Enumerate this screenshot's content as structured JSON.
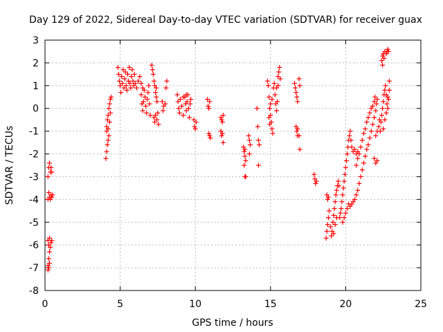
{
  "chart_data": {
    "type": "scatter",
    "title": "Day 129 of 2022, Sidereal Day-to-day VTEC variation (SDTVAR) for receiver guax",
    "xlabel": "GPS time / hours",
    "ylabel": "SDTVAR / TECUs",
    "xlim": [
      0,
      25
    ],
    "ylim": [
      -8,
      3
    ],
    "xticks": [
      "0",
      "5",
      "10",
      "15",
      "20",
      "25"
    ],
    "yticks": [
      "3",
      "2",
      "1",
      "0",
      "-1",
      "-2",
      "-3",
      "-4",
      "-5",
      "-6",
      "-7",
      "-8"
    ],
    "xtick_values": [
      0,
      5,
      10,
      15,
      20,
      25
    ],
    "ytick_values": [
      3,
      2,
      1,
      0,
      -1,
      -2,
      -3,
      -4,
      -5,
      -6,
      -7,
      -8
    ],
    "grid": true,
    "marker": "+",
    "series": [
      {
        "color": "#ff0000",
        "points": [
          [
            0.2,
            -3.0
          ],
          [
            0.25,
            -2.6
          ],
          [
            0.3,
            -2.4
          ],
          [
            0.35,
            -2.8
          ],
          [
            0.4,
            -2.6
          ],
          [
            0.45,
            -2.8
          ],
          [
            0.3,
            -3.9
          ],
          [
            0.35,
            -4.0
          ],
          [
            0.4,
            -3.8
          ],
          [
            0.45,
            -3.9
          ],
          [
            0.5,
            -3.8
          ],
          [
            0.2,
            -4.0
          ],
          [
            0.25,
            -3.7
          ],
          [
            0.2,
            -5.8
          ],
          [
            0.25,
            -6.0
          ],
          [
            0.3,
            -5.7
          ],
          [
            0.35,
            -6.1
          ],
          [
            0.4,
            -5.9
          ],
          [
            0.45,
            -5.8
          ],
          [
            0.3,
            -6.3
          ],
          [
            0.25,
            -6.6
          ],
          [
            0.2,
            -6.9
          ],
          [
            0.2,
            -7.1
          ],
          [
            0.25,
            -7.0
          ],
          [
            0.3,
            -6.8
          ],
          [
            4.05,
            -2.2
          ],
          [
            4.1,
            -1.9
          ],
          [
            4.15,
            -1.6
          ],
          [
            4.2,
            -1.4
          ],
          [
            4.25,
            -1.2
          ],
          [
            4.1,
            -0.8
          ],
          [
            4.15,
            -0.5
          ],
          [
            4.2,
            -0.3
          ],
          [
            4.25,
            0.0
          ],
          [
            4.3,
            0.2
          ],
          [
            4.35,
            0.4
          ],
          [
            4.4,
            0.5
          ],
          [
            4.2,
            -0.9
          ],
          [
            4.3,
            -0.6
          ],
          [
            4.35,
            -0.2
          ],
          [
            4.1,
            -1.0
          ],
          [
            4.85,
            1.8
          ],
          [
            4.9,
            1.5
          ],
          [
            4.95,
            1.2
          ],
          [
            5.0,
            1.0
          ],
          [
            5.05,
            0.7
          ],
          [
            5.1,
            1.4
          ],
          [
            5.15,
            1.1
          ],
          [
            5.2,
            1.7
          ],
          [
            5.25,
            0.9
          ],
          [
            5.3,
            1.3
          ],
          [
            5.35,
            1.6
          ],
          [
            5.4,
            1.0
          ],
          [
            5.45,
            0.8
          ],
          [
            5.5,
            1.5
          ],
          [
            5.55,
            1.2
          ],
          [
            5.6,
            1.8
          ],
          [
            5.65,
            1.1
          ],
          [
            5.7,
            0.9
          ],
          [
            5.75,
            1.4
          ],
          [
            5.8,
            1.7
          ],
          [
            5.85,
            1.2
          ],
          [
            5.9,
            1.0
          ],
          [
            5.95,
            1.5
          ],
          [
            6.0,
            1.1
          ],
          [
            6.1,
            0.9
          ],
          [
            6.2,
            1.2
          ],
          [
            6.3,
            1.4
          ],
          [
            6.4,
            1.1
          ],
          [
            6.5,
            0.9
          ],
          [
            6.4,
            0.6
          ],
          [
            6.45,
            0.2
          ],
          [
            6.5,
            -0.1
          ],
          [
            6.55,
            0.3
          ],
          [
            6.6,
            0.8
          ],
          [
            6.65,
            0.5
          ],
          [
            6.7,
            0.1
          ],
          [
            6.75,
            -0.2
          ],
          [
            6.8,
            0.4
          ],
          [
            6.85,
            0.7
          ],
          [
            6.9,
            1.0
          ],
          [
            6.95,
            0.2
          ],
          [
            7.0,
            -0.3
          ],
          [
            7.1,
            1.9
          ],
          [
            7.15,
            1.7
          ],
          [
            7.2,
            1.5
          ],
          [
            7.25,
            1.2
          ],
          [
            7.3,
            1.0
          ],
          [
            7.35,
            0.7
          ],
          [
            7.4,
            0.5
          ],
          [
            7.25,
            -0.4
          ],
          [
            7.3,
            -0.6
          ],
          [
            7.35,
            -0.3
          ],
          [
            7.45,
            -0.5
          ],
          [
            7.5,
            -0.2
          ],
          [
            7.55,
            -0.7
          ],
          [
            7.4,
            0.9
          ],
          [
            7.45,
            0.3
          ],
          [
            7.8,
            0.3
          ],
          [
            7.85,
            -0.1
          ],
          [
            7.9,
            0.1
          ],
          [
            8.0,
            0.2
          ],
          [
            8.05,
            0.9
          ],
          [
            8.1,
            1.2
          ],
          [
            8.8,
            0.6
          ],
          [
            8.85,
            0.3
          ],
          [
            8.9,
            0.0
          ],
          [
            8.95,
            -0.2
          ],
          [
            9.0,
            0.4
          ],
          [
            9.1,
            0.1
          ],
          [
            9.2,
            -0.3
          ],
          [
            9.3,
            0.5
          ],
          [
            9.35,
            0.2
          ],
          [
            9.4,
            -0.1
          ],
          [
            9.45,
            0.3
          ],
          [
            9.5,
            0.6
          ],
          [
            9.55,
            0.0
          ],
          [
            9.6,
            -0.4
          ],
          [
            9.65,
            0.2
          ],
          [
            9.7,
            0.4
          ],
          [
            9.2,
            0.5
          ],
          [
            9.4,
            0.6
          ],
          [
            9.9,
            -0.5
          ],
          [
            9.95,
            -0.8
          ],
          [
            10.0,
            -0.9
          ],
          [
            10.05,
            -0.6
          ],
          [
            10.8,
            0.4
          ],
          [
            10.85,
            0.1
          ],
          [
            10.9,
            0.0
          ],
          [
            10.95,
            0.3
          ],
          [
            10.9,
            -1.1
          ],
          [
            10.95,
            -1.2
          ],
          [
            11.0,
            -1.3
          ],
          [
            11.7,
            -0.4
          ],
          [
            11.75,
            -0.5
          ],
          [
            11.8,
            -0.6
          ],
          [
            11.85,
            -0.3
          ],
          [
            11.7,
            -1.0
          ],
          [
            11.75,
            -1.2
          ],
          [
            11.8,
            -1.1
          ],
          [
            11.85,
            -1.5
          ],
          [
            13.2,
            -1.7
          ],
          [
            13.25,
            -1.9
          ],
          [
            13.3,
            -2.1
          ],
          [
            13.35,
            -2.3
          ],
          [
            13.25,
            -2.5
          ],
          [
            13.3,
            -1.8
          ],
          [
            13.3,
            -3.0
          ],
          [
            13.35,
            -3.0
          ],
          [
            13.55,
            -1.2
          ],
          [
            13.6,
            -1.4
          ],
          [
            13.65,
            -1.6
          ],
          [
            13.6,
            -2.0
          ],
          [
            14.1,
            0.0
          ],
          [
            14.15,
            -0.8
          ],
          [
            14.2,
            -1.4
          ],
          [
            14.25,
            -1.6
          ],
          [
            14.2,
            -2.5
          ],
          [
            14.8,
            1.2
          ],
          [
            14.85,
            1.0
          ],
          [
            14.9,
            0.5
          ],
          [
            14.95,
            0.0
          ],
          [
            15.0,
            -0.3
          ],
          [
            15.05,
            -0.6
          ],
          [
            15.1,
            -0.9
          ],
          [
            15.15,
            -1.1
          ],
          [
            15.0,
            0.2
          ],
          [
            15.1,
            0.4
          ],
          [
            14.9,
            -0.4
          ],
          [
            14.95,
            -0.7
          ],
          [
            15.2,
            0.9
          ],
          [
            15.25,
            1.1
          ],
          [
            15.3,
            0.6
          ],
          [
            15.35,
            0.2
          ],
          [
            15.4,
            -0.1
          ],
          [
            15.45,
            0.3
          ],
          [
            15.5,
            1.4
          ],
          [
            15.55,
            1.6
          ],
          [
            15.6,
            1.8
          ],
          [
            15.65,
            1.3
          ],
          [
            15.5,
            1.0
          ],
          [
            15.4,
            0.9
          ],
          [
            16.6,
            1.1
          ],
          [
            16.65,
            0.9
          ],
          [
            16.7,
            0.7
          ],
          [
            16.75,
            0.5
          ],
          [
            16.8,
            0.3
          ],
          [
            16.9,
            1.3
          ],
          [
            16.95,
            1.0
          ],
          [
            16.7,
            -0.8
          ],
          [
            16.75,
            -1.0
          ],
          [
            16.8,
            -1.2
          ],
          [
            16.9,
            -1.2
          ],
          [
            16.95,
            -1.8
          ],
          [
            16.8,
            -0.9
          ],
          [
            17.9,
            -2.9
          ],
          [
            17.95,
            -3.1
          ],
          [
            18.0,
            -3.3
          ],
          [
            18.05,
            -3.2
          ],
          [
            18.7,
            -5.7
          ],
          [
            18.75,
            -5.4
          ],
          [
            18.8,
            -5.1
          ],
          [
            18.85,
            -4.8
          ],
          [
            18.9,
            -4.5
          ],
          [
            18.75,
            -3.8
          ],
          [
            18.8,
            -4.0
          ],
          [
            18.85,
            -3.9
          ],
          [
            19.0,
            -5.2
          ],
          [
            19.05,
            -5.6
          ],
          [
            19.1,
            -5.4
          ],
          [
            19.15,
            -5.0
          ],
          [
            19.2,
            -4.7
          ],
          [
            19.25,
            -4.4
          ],
          [
            19.3,
            -4.1
          ],
          [
            19.35,
            -3.8
          ],
          [
            19.4,
            -3.6
          ],
          [
            19.45,
            -3.4
          ],
          [
            19.5,
            -3.2
          ],
          [
            19.55,
            -3.4
          ],
          [
            19.2,
            -5.5
          ],
          [
            19.3,
            -5.1
          ],
          [
            19.4,
            -4.8
          ],
          [
            19.6,
            -4.8
          ],
          [
            19.65,
            -4.6
          ],
          [
            19.7,
            -4.4
          ],
          [
            19.75,
            -4.1
          ],
          [
            19.8,
            -3.8
          ],
          [
            19.85,
            -3.5
          ],
          [
            19.9,
            -3.2
          ],
          [
            19.95,
            -2.9
          ],
          [
            20.0,
            -2.6
          ],
          [
            20.05,
            -2.3
          ],
          [
            20.1,
            -2.0
          ],
          [
            20.15,
            -1.7
          ],
          [
            20.2,
            -1.4
          ],
          [
            20.25,
            -1.2
          ],
          [
            20.3,
            -1.0
          ],
          [
            20.35,
            -1.4
          ],
          [
            20.4,
            -1.7
          ],
          [
            20.5,
            -1.9
          ],
          [
            20.6,
            -1.8
          ],
          [
            20.7,
            -2.0
          ],
          [
            20.8,
            -1.9
          ],
          [
            19.8,
            -5.0
          ],
          [
            19.9,
            -4.8
          ],
          [
            20.0,
            -4.6
          ],
          [
            20.1,
            -4.4
          ],
          [
            20.2,
            -4.2
          ],
          [
            20.3,
            -4.3
          ],
          [
            20.4,
            -4.2
          ],
          [
            20.5,
            -4.1
          ],
          [
            20.6,
            -4.0
          ],
          [
            20.7,
            -3.8
          ],
          [
            20.8,
            -3.6
          ],
          [
            20.9,
            -3.3
          ],
          [
            21.0,
            -3.0
          ],
          [
            21.1,
            -2.7
          ],
          [
            21.2,
            -2.4
          ],
          [
            21.3,
            -2.1
          ],
          [
            21.4,
            -1.8
          ],
          [
            21.5,
            -1.6
          ],
          [
            21.6,
            -1.3
          ],
          [
            21.7,
            -1.0
          ],
          [
            21.8,
            -0.7
          ],
          [
            21.9,
            -0.4
          ],
          [
            22.0,
            -0.1
          ],
          [
            22.05,
            0.2
          ],
          [
            22.1,
            0.4
          ],
          [
            20.7,
            -2.5
          ],
          [
            20.8,
            -2.2
          ],
          [
            20.9,
            -2.0
          ],
          [
            21.0,
            -1.7
          ],
          [
            21.1,
            -1.4
          ],
          [
            21.2,
            -1.1
          ],
          [
            21.3,
            -0.9
          ],
          [
            21.4,
            -0.6
          ],
          [
            21.5,
            -0.4
          ],
          [
            21.6,
            -0.2
          ],
          [
            21.7,
            0.0
          ],
          [
            21.8,
            0.1
          ],
          [
            21.9,
            0.3
          ],
          [
            21.95,
            0.5
          ],
          [
            21.9,
            -2.2
          ],
          [
            22.0,
            -2.4
          ],
          [
            22.1,
            -2.3
          ],
          [
            22.0,
            -1.2
          ],
          [
            22.1,
            -1.0
          ],
          [
            22.2,
            -0.8
          ],
          [
            22.25,
            -0.5
          ],
          [
            22.3,
            -1.0
          ],
          [
            22.35,
            -0.6
          ],
          [
            22.4,
            -0.3
          ],
          [
            22.45,
            0.0
          ],
          [
            22.5,
            0.3
          ],
          [
            22.55,
            0.6
          ],
          [
            22.6,
            0.8
          ],
          [
            22.65,
            1.0
          ],
          [
            22.7,
            0.6
          ],
          [
            22.75,
            0.2
          ],
          [
            22.8,
            0.0
          ],
          [
            22.85,
            0.4
          ],
          [
            22.9,
            1.2
          ],
          [
            22.5,
            -0.9
          ],
          [
            22.6,
            -0.5
          ],
          [
            22.7,
            -0.2
          ],
          [
            22.8,
            0.5
          ],
          [
            22.9,
            0.8
          ],
          [
            22.4,
            2.1
          ],
          [
            22.45,
            2.3
          ],
          [
            22.5,
            2.4
          ],
          [
            22.55,
            2.2
          ],
          [
            22.6,
            2.5
          ],
          [
            22.7,
            2.4
          ],
          [
            22.75,
            2.5
          ],
          [
            22.8,
            2.6
          ],
          [
            22.85,
            2.5
          ],
          [
            22.45,
            1.9
          ]
        ]
      }
    ]
  }
}
